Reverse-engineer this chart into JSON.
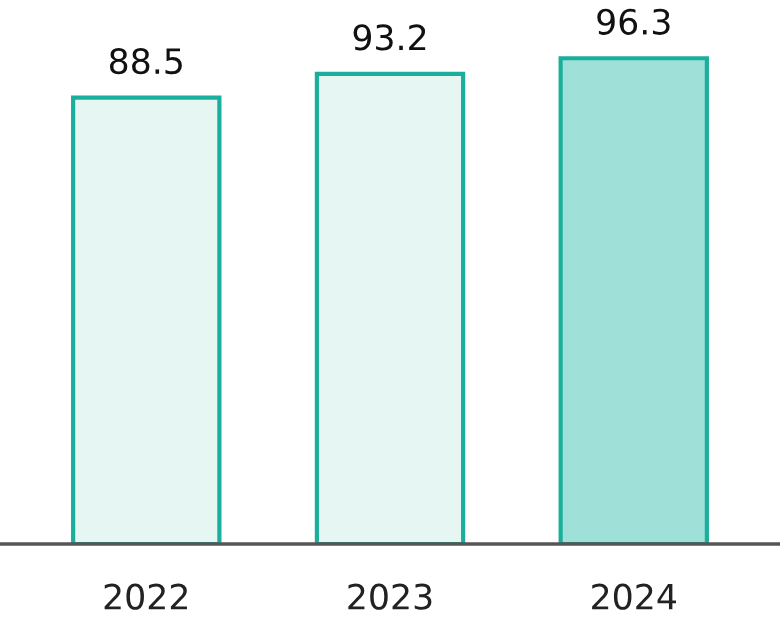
{
  "chart_data": {
    "type": "bar",
    "categories": [
      "2022",
      "2023",
      "2024"
    ],
    "values": [
      88.5,
      93.2,
      96.3
    ],
    "colors": [
      "#e6f6f3",
      "#e6f6f3",
      "#9fe0d9"
    ],
    "data_labels": true,
    "grid": false
  }
}
